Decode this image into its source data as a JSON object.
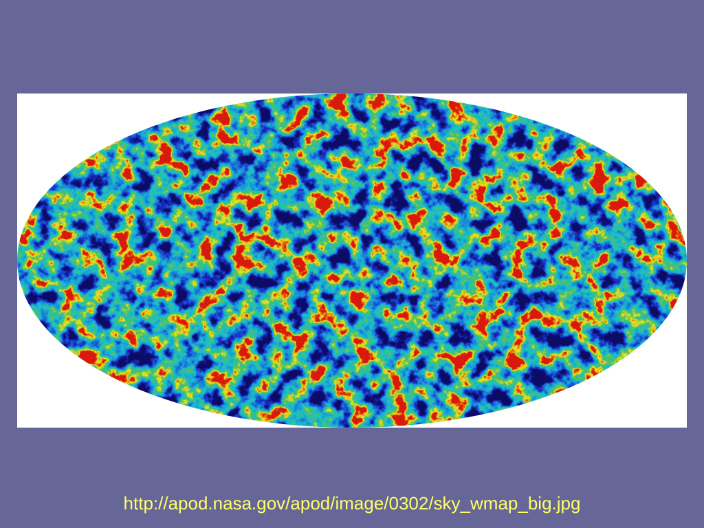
{
  "caption": "http://apod.nasa.gov/apod/image/0302/sky_wmap_big.jpg"
}
